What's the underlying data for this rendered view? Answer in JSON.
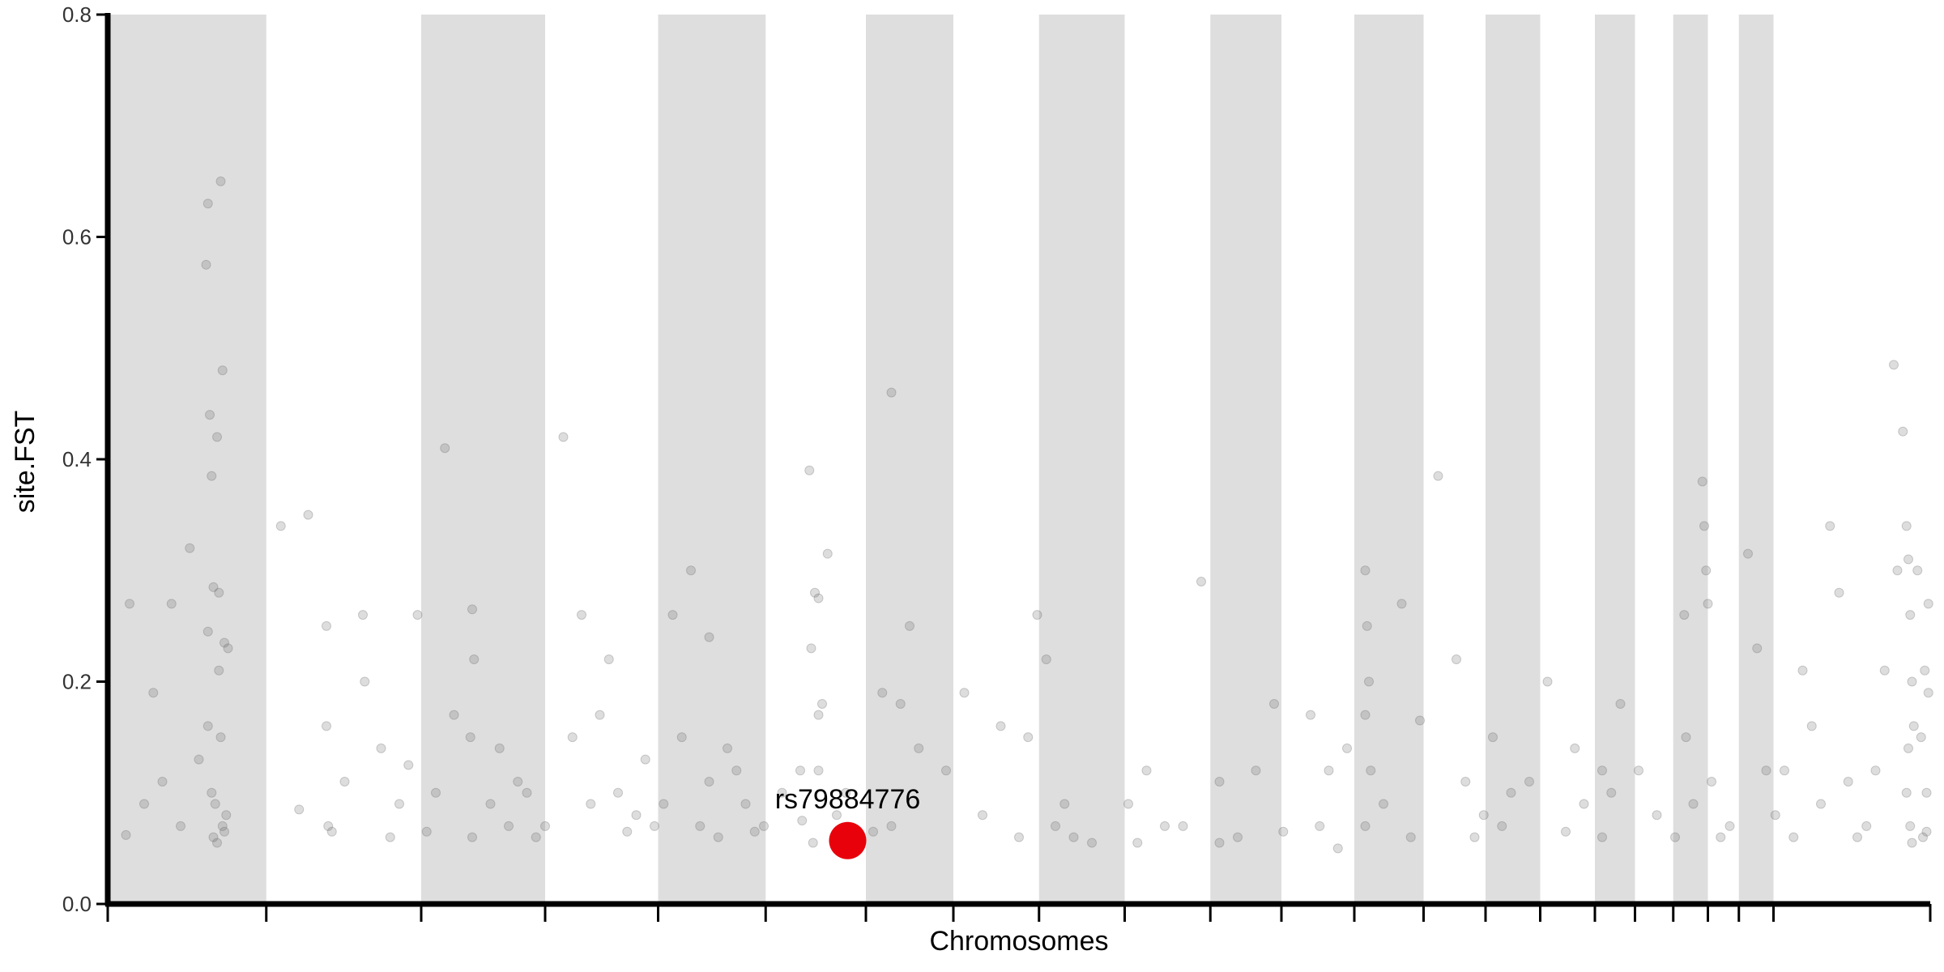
{
  "chart_data": {
    "type": "scatter",
    "title": "",
    "xlabel": "Chromosomes",
    "ylabel": "site.FST",
    "ylim": [
      0,
      0.8
    ],
    "y_ticks": [
      "0.0",
      "0.2",
      "0.4",
      "0.6",
      "0.8"
    ],
    "x_tick_labels": [],
    "grid": false,
    "legend": "none",
    "band_fill": "#dedede",
    "point_color": "#666666",
    "highlight_color": "#e8000b",
    "chromosome_boundaries": [
      0,
      0.087,
      0.172,
      0.24,
      0.302,
      0.361,
      0.416,
      0.464,
      0.511,
      0.558,
      0.605,
      0.644,
      0.684,
      0.722,
      0.756,
      0.786,
      0.816,
      0.838,
      0.859,
      0.878,
      0.895,
      0.914,
      1.0
    ],
    "series": [
      {
        "points": [
          [
            0.01,
            0.062
          ],
          [
            0.02,
            0.09
          ],
          [
            0.03,
            0.11
          ],
          [
            0.04,
            0.07
          ],
          [
            0.05,
            0.13
          ],
          [
            0.06,
            0.055
          ],
          [
            0.012,
            0.27
          ],
          [
            0.025,
            0.19
          ],
          [
            0.035,
            0.27
          ],
          [
            0.045,
            0.32
          ],
          [
            0.055,
            0.245
          ],
          [
            0.065,
            0.08
          ],
          [
            0.055,
            0.63
          ],
          [
            0.054,
            0.575
          ],
          [
            0.056,
            0.44
          ],
          [
            0.057,
            0.385
          ],
          [
            0.06,
            0.42
          ],
          [
            0.062,
            0.65
          ],
          [
            0.063,
            0.48
          ],
          [
            0.058,
            0.285
          ],
          [
            0.061,
            0.28
          ],
          [
            0.064,
            0.235
          ],
          [
            0.055,
            0.16
          ],
          [
            0.057,
            0.1
          ],
          [
            0.059,
            0.09
          ],
          [
            0.063,
            0.07
          ],
          [
            0.064,
            0.065
          ],
          [
            0.062,
            0.15
          ],
          [
            0.058,
            0.06
          ],
          [
            0.061,
            0.21
          ],
          [
            0.066,
            0.23
          ],
          [
            0.095,
            0.34
          ],
          [
            0.11,
            0.35
          ],
          [
            0.12,
            0.25
          ],
          [
            0.12,
            0.16
          ],
          [
            0.121,
            0.07
          ],
          [
            0.123,
            0.065
          ],
          [
            0.13,
            0.11
          ],
          [
            0.14,
            0.26
          ],
          [
            0.141,
            0.2
          ],
          [
            0.15,
            0.14
          ],
          [
            0.16,
            0.09
          ],
          [
            0.165,
            0.125
          ],
          [
            0.105,
            0.085
          ],
          [
            0.155,
            0.06
          ],
          [
            0.17,
            0.26
          ],
          [
            0.18,
            0.1
          ],
          [
            0.19,
            0.17
          ],
          [
            0.2,
            0.06
          ],
          [
            0.21,
            0.09
          ],
          [
            0.22,
            0.07
          ],
          [
            0.23,
            0.1
          ],
          [
            0.235,
            0.06
          ],
          [
            0.175,
            0.065
          ],
          [
            0.185,
            0.41
          ],
          [
            0.2,
            0.265
          ],
          [
            0.201,
            0.22
          ],
          [
            0.199,
            0.15
          ],
          [
            0.215,
            0.14
          ],
          [
            0.225,
            0.11
          ],
          [
            0.24,
            0.07
          ],
          [
            0.25,
            0.42
          ],
          [
            0.26,
            0.26
          ],
          [
            0.27,
            0.17
          ],
          [
            0.28,
            0.1
          ],
          [
            0.29,
            0.08
          ],
          [
            0.3,
            0.07
          ],
          [
            0.255,
            0.15
          ],
          [
            0.265,
            0.09
          ],
          [
            0.275,
            0.22
          ],
          [
            0.285,
            0.065
          ],
          [
            0.295,
            0.13
          ],
          [
            0.305,
            0.09
          ],
          [
            0.31,
            0.26
          ],
          [
            0.315,
            0.15
          ],
          [
            0.32,
            0.3
          ],
          [
            0.325,
            0.07
          ],
          [
            0.33,
            0.11
          ],
          [
            0.335,
            0.06
          ],
          [
            0.34,
            0.14
          ],
          [
            0.35,
            0.09
          ],
          [
            0.355,
            0.065
          ],
          [
            0.33,
            0.24
          ],
          [
            0.345,
            0.12
          ],
          [
            0.36,
            0.07
          ],
          [
            0.37,
            0.1
          ],
          [
            0.38,
            0.12
          ],
          [
            0.381,
            0.075
          ],
          [
            0.39,
            0.17
          ],
          [
            0.392,
            0.18
          ],
          [
            0.385,
            0.39
          ],
          [
            0.395,
            0.315
          ],
          [
            0.39,
            0.275
          ],
          [
            0.388,
            0.28
          ],
          [
            0.386,
            0.23
          ],
          [
            0.39,
            0.12
          ],
          [
            0.387,
            0.055
          ],
          [
            0.4,
            0.08
          ],
          [
            0.405,
            0.1
          ],
          [
            0.41,
            0.06
          ],
          [
            0.43,
            0.46
          ],
          [
            0.44,
            0.25
          ],
          [
            0.435,
            0.18
          ],
          [
            0.445,
            0.14
          ],
          [
            0.425,
            0.19
          ],
          [
            0.43,
            0.07
          ],
          [
            0.42,
            0.065
          ],
          [
            0.46,
            0.12
          ],
          [
            0.47,
            0.19
          ],
          [
            0.48,
            0.08
          ],
          [
            0.49,
            0.16
          ],
          [
            0.5,
            0.06
          ],
          [
            0.51,
            0.26
          ],
          [
            0.515,
            0.22
          ],
          [
            0.505,
            0.15
          ],
          [
            0.52,
            0.07
          ],
          [
            0.525,
            0.09
          ],
          [
            0.53,
            0.06
          ],
          [
            0.54,
            0.055
          ],
          [
            0.56,
            0.09
          ],
          [
            0.565,
            0.055
          ],
          [
            0.57,
            0.12
          ],
          [
            0.58,
            0.07
          ],
          [
            0.59,
            0.07
          ],
          [
            0.6,
            0.29
          ],
          [
            0.61,
            0.055
          ],
          [
            0.61,
            0.11
          ],
          [
            0.62,
            0.06
          ],
          [
            0.63,
            0.12
          ],
          [
            0.64,
            0.18
          ],
          [
            0.645,
            0.065
          ],
          [
            0.66,
            0.17
          ],
          [
            0.665,
            0.07
          ],
          [
            0.67,
            0.12
          ],
          [
            0.675,
            0.05
          ],
          [
            0.68,
            0.14
          ],
          [
            0.69,
            0.3
          ],
          [
            0.691,
            0.25
          ],
          [
            0.692,
            0.2
          ],
          [
            0.69,
            0.17
          ],
          [
            0.693,
            0.12
          ],
          [
            0.69,
            0.07
          ],
          [
            0.7,
            0.09
          ],
          [
            0.71,
            0.27
          ],
          [
            0.715,
            0.06
          ],
          [
            0.72,
            0.165
          ],
          [
            0.73,
            0.385
          ],
          [
            0.74,
            0.22
          ],
          [
            0.745,
            0.11
          ],
          [
            0.75,
            0.06
          ],
          [
            0.755,
            0.08
          ],
          [
            0.76,
            0.15
          ],
          [
            0.765,
            0.07
          ],
          [
            0.77,
            0.1
          ],
          [
            0.78,
            0.11
          ],
          [
            0.79,
            0.2
          ],
          [
            0.8,
            0.065
          ],
          [
            0.805,
            0.14
          ],
          [
            0.81,
            0.09
          ],
          [
            0.82,
            0.12
          ],
          [
            0.82,
            0.06
          ],
          [
            0.825,
            0.1
          ],
          [
            0.83,
            0.18
          ],
          [
            0.84,
            0.12
          ],
          [
            0.85,
            0.08
          ],
          [
            0.86,
            0.06
          ],
          [
            0.865,
            0.26
          ],
          [
            0.866,
            0.15
          ],
          [
            0.87,
            0.09
          ],
          [
            0.875,
            0.38
          ],
          [
            0.876,
            0.34
          ],
          [
            0.877,
            0.3
          ],
          [
            0.878,
            0.27
          ],
          [
            0.88,
            0.11
          ],
          [
            0.885,
            0.06
          ],
          [
            0.89,
            0.07
          ],
          [
            0.9,
            0.315
          ],
          [
            0.905,
            0.23
          ],
          [
            0.91,
            0.12
          ],
          [
            0.915,
            0.08
          ],
          [
            0.92,
            0.12
          ],
          [
            0.925,
            0.06
          ],
          [
            0.93,
            0.21
          ],
          [
            0.935,
            0.16
          ],
          [
            0.94,
            0.09
          ],
          [
            0.945,
            0.34
          ],
          [
            0.95,
            0.28
          ],
          [
            0.955,
            0.11
          ],
          [
            0.96,
            0.06
          ],
          [
            0.965,
            0.07
          ],
          [
            0.97,
            0.12
          ],
          [
            0.975,
            0.21
          ],
          [
            0.98,
            0.485
          ],
          [
            0.982,
            0.3
          ],
          [
            0.985,
            0.425
          ],
          [
            0.987,
            0.34
          ],
          [
            0.988,
            0.31
          ],
          [
            0.989,
            0.26
          ],
          [
            0.99,
            0.2
          ],
          [
            0.988,
            0.14
          ],
          [
            0.987,
            0.1
          ],
          [
            0.989,
            0.07
          ],
          [
            0.99,
            0.055
          ],
          [
            0.991,
            0.16
          ],
          [
            0.993,
            0.3
          ],
          [
            0.995,
            0.15
          ],
          [
            0.996,
            0.06
          ],
          [
            0.997,
            0.21
          ],
          [
            0.998,
            0.1
          ],
          [
            0.999,
            0.27
          ],
          [
            0.999,
            0.19
          ],
          [
            0.998,
            0.065
          ]
        ]
      }
    ],
    "highlight": {
      "label": "rs79884776",
      "x": 0.406,
      "y": 0.057
    }
  }
}
